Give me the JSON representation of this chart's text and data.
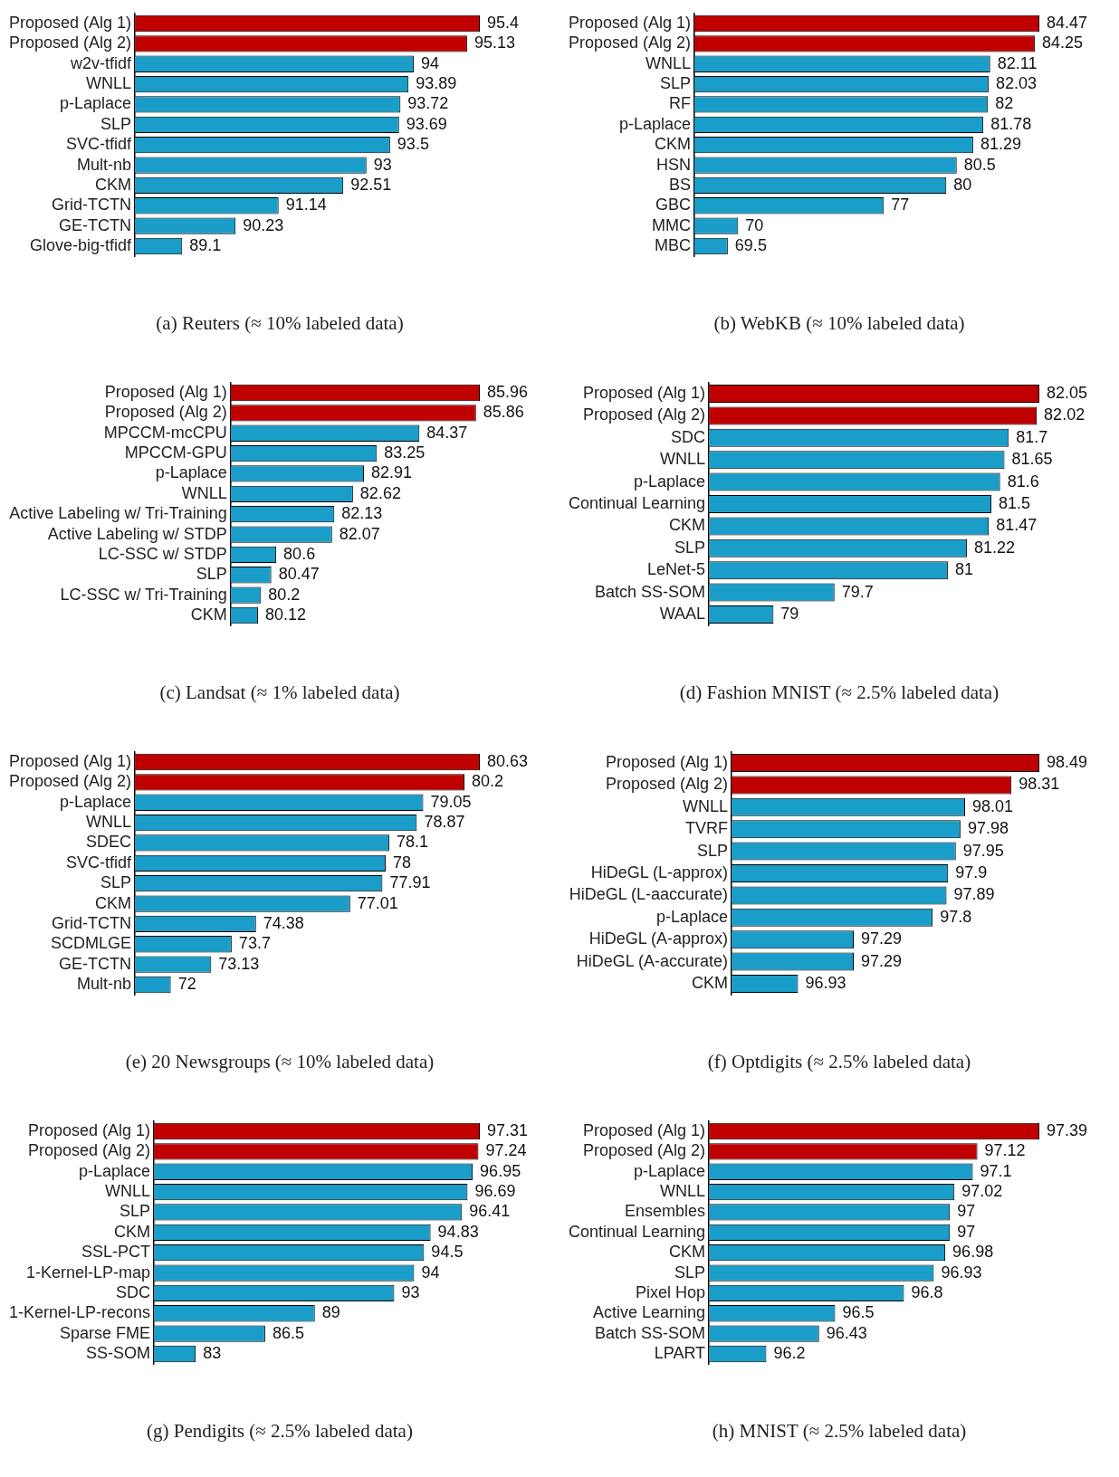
{
  "chart_data": [
    {
      "type": "bar",
      "orientation": "horizontal",
      "title": "(a) Reuters (≈ 10% labeled data)",
      "tick_labels": "y",
      "data_labels": true,
      "xlim": [
        88.1,
        95.4
      ],
      "categories": [
        "Proposed (Alg 1)",
        "Proposed (Alg 2)",
        "w2v-tfidf",
        "WNLL",
        "p-Laplace",
        "SLP",
        "SVC-tfidf",
        "Mult-nb",
        "CKM",
        "Grid-TCTN",
        "GE-TCTN",
        "Glove-big-tfidf"
      ],
      "values": [
        95.4,
        95.13,
        94,
        93.89,
        93.72,
        93.69,
        93.5,
        93,
        92.51,
        91.14,
        90.23,
        89.1
      ],
      "colors": [
        "#c00000",
        "#c00000",
        "#1a9dc8",
        "#1a9dc8",
        "#1a9dc8",
        "#1a9dc8",
        "#1a9dc8",
        "#1a9dc8",
        "#1a9dc8",
        "#1a9dc8",
        "#1a9dc8",
        "#1a9dc8"
      ]
    },
    {
      "type": "bar",
      "orientation": "horizontal",
      "title": "(b) WebKB (≈ 10% labeled data)",
      "tick_labels": "y",
      "data_labels": true,
      "xlim": [
        67.9,
        84.47
      ],
      "categories": [
        "Proposed (Alg 1)",
        "Proposed (Alg 2)",
        "WNLL",
        "SLP",
        "RF",
        "p-Laplace",
        "CKM",
        "HSN",
        "BS",
        "GBC",
        "MMC",
        "MBC"
      ],
      "values": [
        84.47,
        84.25,
        82.11,
        82.03,
        82,
        81.78,
        81.29,
        80.5,
        80,
        77,
        70,
        69.5
      ],
      "colors": [
        "#c00000",
        "#c00000",
        "#1a9dc8",
        "#1a9dc8",
        "#1a9dc8",
        "#1a9dc8",
        "#1a9dc8",
        "#1a9dc8",
        "#1a9dc8",
        "#1a9dc8",
        "#1a9dc8",
        "#1a9dc8"
      ]
    },
    {
      "type": "bar",
      "orientation": "horizontal",
      "title": "(c) Landsat (≈ 1% labeled data)",
      "tick_labels": "y",
      "data_labels": true,
      "xlim": [
        79.4,
        85.96
      ],
      "categories": [
        "Proposed (Alg 1)",
        "Proposed (Alg 2)",
        "MPCCM-mcCPU",
        "MPCCM-GPU",
        "p-Laplace",
        "WNLL",
        "Active Labeling w/ Tri-Training",
        "Active Labeling w/ STDP",
        "LC-SSC w/ STDP",
        "SLP",
        "LC-SSC w/ Tri-Training",
        "CKM"
      ],
      "values": [
        85.96,
        85.86,
        84.37,
        83.25,
        82.91,
        82.62,
        82.13,
        82.07,
        80.6,
        80.47,
        80.2,
        80.12
      ],
      "colors": [
        "#c00000",
        "#c00000",
        "#1a9dc8",
        "#1a9dc8",
        "#1a9dc8",
        "#1a9dc8",
        "#1a9dc8",
        "#1a9dc8",
        "#1a9dc8",
        "#1a9dc8",
        "#1a9dc8",
        "#1a9dc8"
      ]
    },
    {
      "type": "bar",
      "orientation": "horizontal",
      "title": "(d) Fashion MNIST (≈ 2.5% labeled data)",
      "tick_labels": "y",
      "data_labels": true,
      "xlim": [
        78.26,
        82.05
      ],
      "categories": [
        "Proposed (Alg 1)",
        "Proposed (Alg 2)",
        "SDC",
        "WNLL",
        "p-Laplace",
        "Continual Learning",
        "CKM",
        "SLP",
        "LeNet-5",
        "Batch SS-SOM",
        "WAAL"
      ],
      "values": [
        82.05,
        82.02,
        81.7,
        81.65,
        81.6,
        81.5,
        81.47,
        81.22,
        81,
        79.7,
        79
      ],
      "colors": [
        "#c00000",
        "#c00000",
        "#1a9dc8",
        "#1a9dc8",
        "#1a9dc8",
        "#1a9dc8",
        "#1a9dc8",
        "#1a9dc8",
        "#1a9dc8",
        "#1a9dc8",
        "#1a9dc8"
      ]
    },
    {
      "type": "bar",
      "orientation": "horizontal",
      "title": "(e) 20 Newsgroups (≈ 10% labeled data)",
      "tick_labels": "y",
      "data_labels": true,
      "xlim": [
        71,
        80.63
      ],
      "categories": [
        "Proposed (Alg 1)",
        "Proposed (Alg 2)",
        "p-Laplace",
        "WNLL",
        "SDEC",
        "SVC-tfidf",
        "SLP",
        "CKM",
        "Grid-TCTN",
        "SCDMLGE",
        "GE-TCTN",
        "Mult-nb"
      ],
      "values": [
        80.63,
        80.2,
        79.05,
        78.87,
        78.1,
        78,
        77.91,
        77.01,
        74.38,
        73.7,
        73.13,
        72
      ],
      "colors": [
        "#c00000",
        "#c00000",
        "#1a9dc8",
        "#1a9dc8",
        "#1a9dc8",
        "#1a9dc8",
        "#1a9dc8",
        "#1a9dc8",
        "#1a9dc8",
        "#1a9dc8",
        "#1a9dc8",
        "#1a9dc8"
      ]
    },
    {
      "type": "bar",
      "orientation": "horizontal",
      "title": "(f) Optdigits (≈ 2.5% labeled data)",
      "tick_labels": "y",
      "data_labels": true,
      "xlim": [
        96.5,
        98.49
      ],
      "categories": [
        "Proposed (Alg 1)",
        "Proposed (Alg 2)",
        "WNLL",
        "TVRF",
        "SLP",
        "HiDeGL (L-approx)",
        "HiDeGL (L-aaccurate)",
        "p-Laplace",
        "HiDeGL (A-approx)",
        "HiDeGL (A-accurate)",
        "CKM"
      ],
      "values": [
        98.49,
        98.31,
        98.01,
        97.98,
        97.95,
        97.9,
        97.89,
        97.8,
        97.29,
        97.29,
        96.93
      ],
      "colors": [
        "#c00000",
        "#c00000",
        "#1a9dc8",
        "#1a9dc8",
        "#1a9dc8",
        "#1a9dc8",
        "#1a9dc8",
        "#1a9dc8",
        "#1a9dc8",
        "#1a9dc8",
        "#1a9dc8"
      ]
    },
    {
      "type": "bar",
      "orientation": "horizontal",
      "title": "(g) Pendigits (≈ 2.5% labeled data)",
      "tick_labels": "y",
      "data_labels": true,
      "xlim": [
        80.9,
        97.31
      ],
      "categories": [
        "Proposed (Alg 1)",
        "Proposed (Alg 2)",
        "p-Laplace",
        "WNLL",
        "SLP",
        "CKM",
        "SSL-PCT",
        "1-Kernel-LP-map",
        "SDC",
        "1-Kernel-LP-recons",
        "Sparse FME",
        "SS-SOM"
      ],
      "values": [
        97.31,
        97.24,
        96.95,
        96.69,
        96.41,
        94.83,
        94.5,
        94,
        93,
        89,
        86.5,
        83
      ],
      "colors": [
        "#c00000",
        "#c00000",
        "#1a9dc8",
        "#1a9dc8",
        "#1a9dc8",
        "#1a9dc8",
        "#1a9dc8",
        "#1a9dc8",
        "#1a9dc8",
        "#1a9dc8",
        "#1a9dc8",
        "#1a9dc8"
      ]
    },
    {
      "type": "bar",
      "orientation": "horizontal",
      "title": "(h) MNIST (≈ 2.5% labeled data)",
      "tick_labels": "y",
      "data_labels": true,
      "xlim": [
        95.95,
        97.39
      ],
      "categories": [
        "Proposed (Alg 1)",
        "Proposed (Alg 2)",
        "p-Laplace",
        "WNLL",
        "Ensembles",
        "Continual Learning",
        "CKM",
        "SLP",
        "Pixel Hop",
        "Active Learning",
        "Batch SS-SOM",
        "LPART"
      ],
      "values": [
        97.39,
        97.12,
        97.1,
        97.02,
        97,
        97,
        96.98,
        96.93,
        96.8,
        96.5,
        96.43,
        96.2
      ],
      "colors": [
        "#c00000",
        "#c00000",
        "#1a9dc8",
        "#1a9dc8",
        "#1a9dc8",
        "#1a9dc8",
        "#1a9dc8",
        "#1a9dc8",
        "#1a9dc8",
        "#1a9dc8",
        "#1a9dc8",
        "#1a9dc8"
      ]
    }
  ]
}
